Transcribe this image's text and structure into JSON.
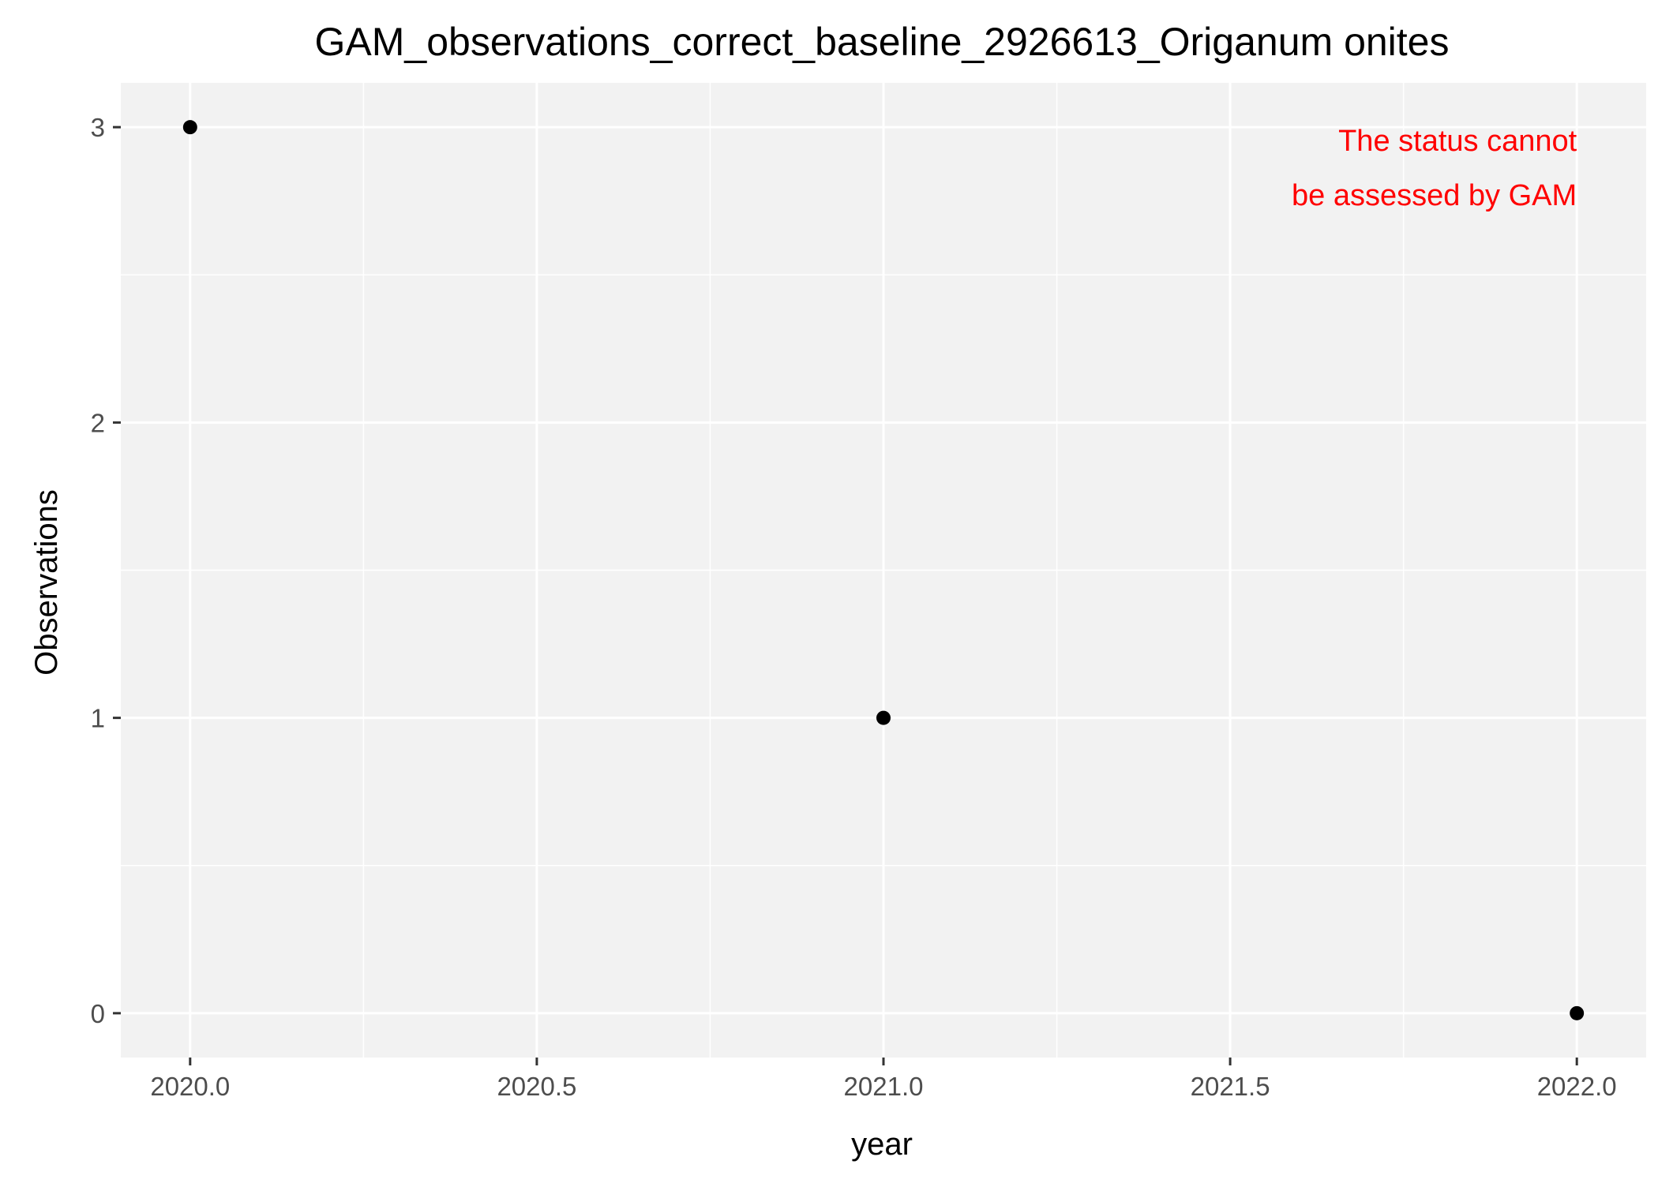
{
  "chart_data": {
    "type": "scatter",
    "title": "GAM_observations_correct_baseline_2926613_Origanum onites",
    "xlabel": "year",
    "ylabel": "Observations",
    "x": [
      2020,
      2021,
      2022
    ],
    "y": [
      3,
      1,
      0
    ],
    "xlim": [
      2019.9,
      2022.1
    ],
    "ylim": [
      -0.15,
      3.15
    ],
    "x_ticks": [
      2020.0,
      2020.5,
      2021.0,
      2021.5,
      2022.0
    ],
    "x_tick_labels": [
      "2020.0",
      "2020.5",
      "2021.0",
      "2021.5",
      "2022.0"
    ],
    "y_ticks": [
      0,
      1,
      2,
      3
    ],
    "y_tick_labels": [
      "0",
      "1",
      "2",
      "3"
    ],
    "grid": true,
    "annotation": {
      "lines": [
        "The status cannot",
        "be assessed by GAM"
      ],
      "color": "#ff0000",
      "placement": "top-right"
    },
    "colors": {
      "panel_background": "#f2f2f2",
      "grid": "#ffffff",
      "points": "#000000"
    }
  }
}
